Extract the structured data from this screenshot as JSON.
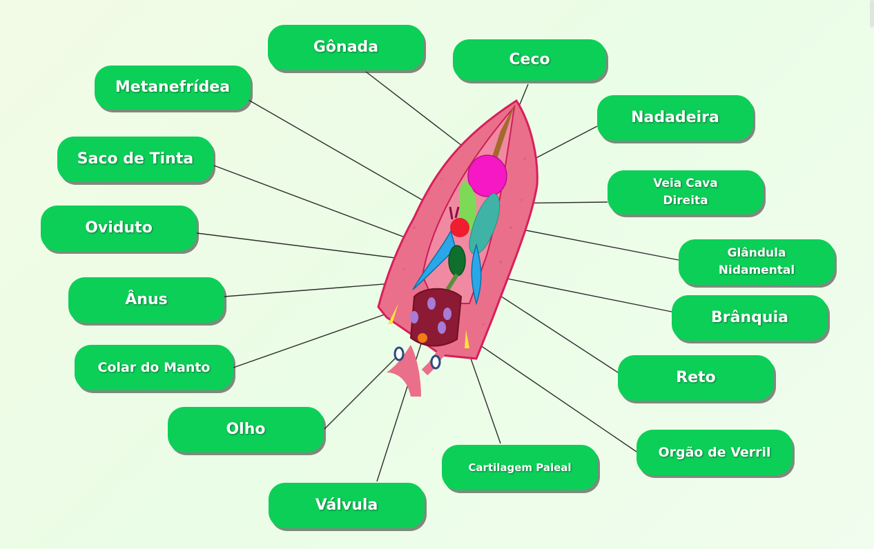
{
  "labels": {
    "gonada": "Gônada",
    "ceco": "Ceco",
    "metanefridea": "Metanefrídea",
    "nadadeira": "Nadadeira",
    "saco_de_tinta": "Saco de Tinta",
    "veia_cava_direita_1": "Veia Cava",
    "veia_cava_direita_2": "Direita",
    "oviduto": "Oviduto",
    "glandula_nidamental_1": "Glândula",
    "glandula_nidamental_2": "Nidamental",
    "anus": "Ânus",
    "branquia": "Brânquia",
    "colar_do_manto": "Colar do Manto",
    "reto": "Reto",
    "olho": "Olho",
    "orgao_de_verril": "Orgão de Verril",
    "cartilagem_paleal": "Cartilagem Paleal",
    "valvula": "Válvula"
  },
  "colors": {
    "label_bg": "#0ccf58",
    "mantle": "#ea6f8a",
    "mantle_edge": "#d81e5b",
    "gonad": "#f518c4",
    "gills": "#2aa7e8",
    "ink_sac": "#0f6f2d",
    "nidamental": "#3fb4a6",
    "valve": "#6f1020"
  }
}
